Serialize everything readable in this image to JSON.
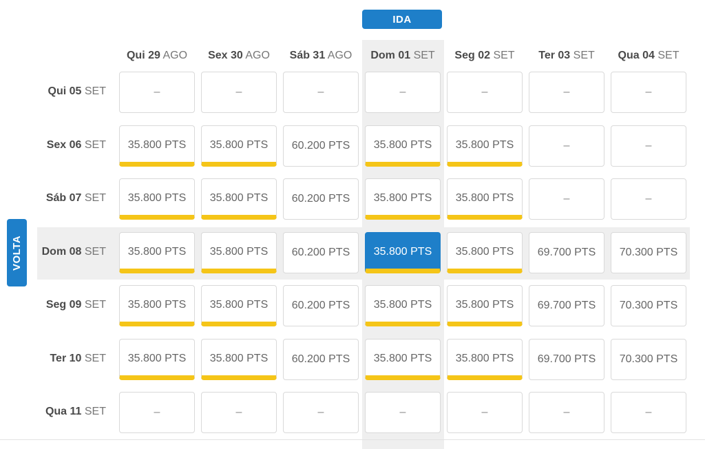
{
  "ida_label": "IDA",
  "volta_label": "VOLTA",
  "columns": [
    {
      "day": "Qui 29",
      "month": "AGO"
    },
    {
      "day": "Sex 30",
      "month": "AGO"
    },
    {
      "day": "Sáb 31",
      "month": "AGO"
    },
    {
      "day": "Dom 01",
      "month": "SET"
    },
    {
      "day": "Seg 02",
      "month": "SET"
    },
    {
      "day": "Ter 03",
      "month": "SET"
    },
    {
      "day": "Qua 04",
      "month": "SET"
    }
  ],
  "rows": [
    {
      "day": "Qui 05",
      "month": "SET",
      "cells": [
        {
          "text": "–",
          "featured": false
        },
        {
          "text": "–",
          "featured": false
        },
        {
          "text": "–",
          "featured": false
        },
        {
          "text": "–",
          "featured": false
        },
        {
          "text": "–",
          "featured": false
        },
        {
          "text": "–",
          "featured": false
        },
        {
          "text": "–",
          "featured": false
        }
      ]
    },
    {
      "day": "Sex 06",
      "month": "SET",
      "cells": [
        {
          "text": "35.800 PTS",
          "featured": true
        },
        {
          "text": "35.800 PTS",
          "featured": true
        },
        {
          "text": "60.200 PTS",
          "featured": false
        },
        {
          "text": "35.800 PTS",
          "featured": true
        },
        {
          "text": "35.800 PTS",
          "featured": true
        },
        {
          "text": "–",
          "featured": false
        },
        {
          "text": "–",
          "featured": false
        }
      ]
    },
    {
      "day": "Sáb 07",
      "month": "SET",
      "cells": [
        {
          "text": "35.800 PTS",
          "featured": true
        },
        {
          "text": "35.800 PTS",
          "featured": true
        },
        {
          "text": "60.200 PTS",
          "featured": false
        },
        {
          "text": "35.800 PTS",
          "featured": true
        },
        {
          "text": "35.800 PTS",
          "featured": true
        },
        {
          "text": "–",
          "featured": false
        },
        {
          "text": "–",
          "featured": false
        }
      ]
    },
    {
      "day": "Dom 08",
      "month": "SET",
      "cells": [
        {
          "text": "35.800 PTS",
          "featured": true
        },
        {
          "text": "35.800 PTS",
          "featured": true
        },
        {
          "text": "60.200 PTS",
          "featured": false
        },
        {
          "text": "35.800 PTS",
          "featured": true,
          "selected": true
        },
        {
          "text": "35.800 PTS",
          "featured": true
        },
        {
          "text": "69.700 PTS",
          "featured": false
        },
        {
          "text": "70.300 PTS",
          "featured": false
        }
      ]
    },
    {
      "day": "Seg 09",
      "month": "SET",
      "cells": [
        {
          "text": "35.800 PTS",
          "featured": true
        },
        {
          "text": "35.800 PTS",
          "featured": true
        },
        {
          "text": "60.200 PTS",
          "featured": false
        },
        {
          "text": "35.800 PTS",
          "featured": true
        },
        {
          "text": "35.800 PTS",
          "featured": true
        },
        {
          "text": "69.700 PTS",
          "featured": false
        },
        {
          "text": "70.300 PTS",
          "featured": false
        }
      ]
    },
    {
      "day": "Ter 10",
      "month": "SET",
      "cells": [
        {
          "text": "35.800 PTS",
          "featured": true
        },
        {
          "text": "35.800 PTS",
          "featured": true
        },
        {
          "text": "60.200 PTS",
          "featured": false
        },
        {
          "text": "35.800 PTS",
          "featured": true
        },
        {
          "text": "35.800 PTS",
          "featured": true
        },
        {
          "text": "69.700 PTS",
          "featured": false
        },
        {
          "text": "70.300 PTS",
          "featured": false
        }
      ]
    },
    {
      "day": "Qua 11",
      "month": "SET",
      "cells": [
        {
          "text": "–",
          "featured": false
        },
        {
          "text": "–",
          "featured": false
        },
        {
          "text": "–",
          "featured": false
        },
        {
          "text": "–",
          "featured": false
        },
        {
          "text": "–",
          "featured": false
        },
        {
          "text": "–",
          "featured": false
        },
        {
          "text": "–",
          "featured": false
        }
      ]
    }
  ],
  "colors": {
    "accent": "#1e7fc9",
    "highlight_bar": "#f5c518",
    "band": "#efefef"
  }
}
